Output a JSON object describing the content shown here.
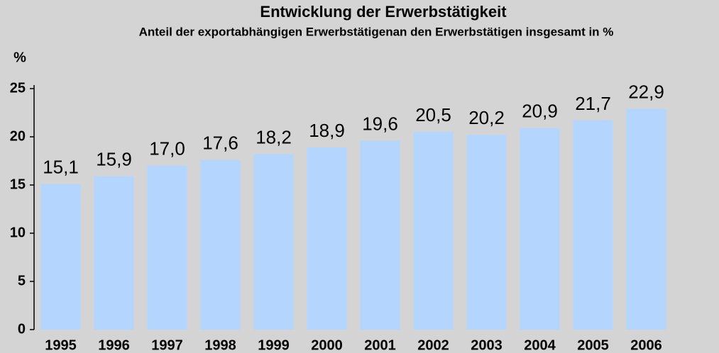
{
  "chart_data": {
    "type": "bar",
    "title": "Entwicklung der Erwerbstätigkeit",
    "subtitle": "Anteil der exportabhängigen Erwerbstätigenan den Erwerbstätigen insgesamt in %",
    "y_axis_label": "%",
    "categories": [
      "1995",
      "1996",
      "1997",
      "1998",
      "1999",
      "2000",
      "2001",
      "2002",
      "2003",
      "2004",
      "2005",
      "2006"
    ],
    "values": [
      15.1,
      15.9,
      17.0,
      17.6,
      18.2,
      18.9,
      19.6,
      20.5,
      20.2,
      20.9,
      21.7,
      22.9
    ],
    "value_labels": [
      "15,1",
      "15,9",
      "17,0",
      "17,6",
      "18,2",
      "18,9",
      "19,6",
      "20,5",
      "20,2",
      "20,9",
      "21,7",
      "22,9"
    ],
    "color": "#b4d5fd",
    "ylim": [
      0,
      25
    ],
    "yticks": [
      0,
      5,
      10,
      15,
      20,
      25
    ],
    "grid": false
  }
}
